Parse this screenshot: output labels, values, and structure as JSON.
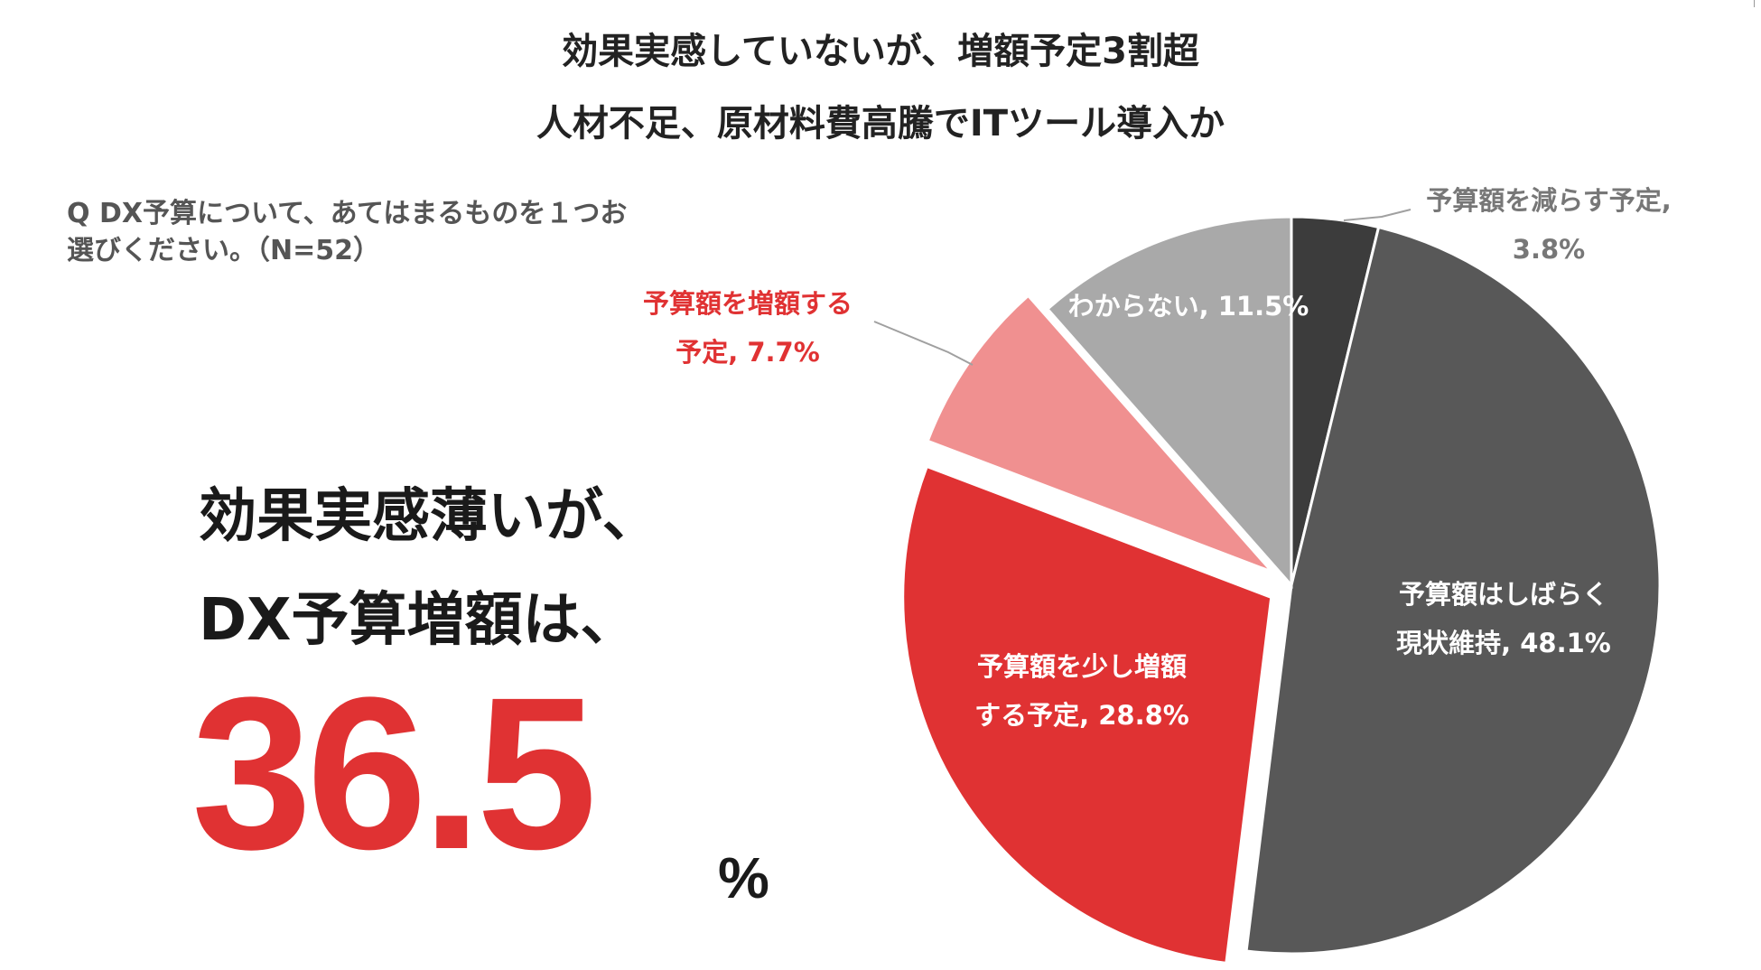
{
  "headline": {
    "line1": "効果実感していないが、増額予定3割超",
    "line2": "人材不足、原材料費高騰でITツール導入か"
  },
  "question": {
    "line1": "Q DX予算について、あてはまるものを１つお",
    "line2": "選びください。（N=52）"
  },
  "callout": {
    "line1": "効果実感薄いが、",
    "line2": "DX予算増額は、",
    "value": "36.5",
    "unit": "%"
  },
  "chart_data": {
    "type": "pie",
    "title": "",
    "start_angle_deg": 0,
    "direction": "clockwise",
    "slices": [
      {
        "label_lines": [
          "予算額を減らす予定,",
          "3.8%"
        ],
        "value": 3.8,
        "color": "#3c3c3c",
        "label_color": "#777777",
        "exploded": false
      },
      {
        "label_lines": [
          "予算額はしばらく",
          "現状維持, 48.1%"
        ],
        "value": 48.1,
        "color": "#585858",
        "label_color": "#ffffff",
        "exploded": false
      },
      {
        "label_lines": [
          "予算額を少し増額",
          "する予定, 28.8%"
        ],
        "value": 28.8,
        "color": "#e03233",
        "label_color": "#ffffff",
        "exploded": true
      },
      {
        "label_lines": [
          "予算額を増額する",
          "予定, 7.7%"
        ],
        "value": 7.7,
        "color": "#f09090",
        "label_color": "#e03233",
        "exploded": true
      },
      {
        "label_lines": [
          "わからない, 11.5%"
        ],
        "value": 11.5,
        "color": "#a9a9a9",
        "label_color": "#ffffff",
        "exploded": false
      }
    ]
  }
}
